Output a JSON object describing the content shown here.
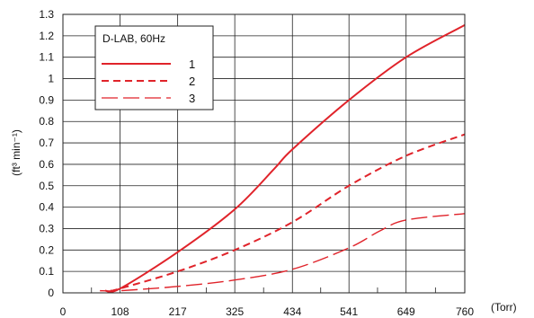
{
  "chart_data": {
    "type": "line",
    "title": "",
    "xlabel": "(Torr)",
    "ylabel": "(ft³ min⁻¹)",
    "x_ticks": [
      0,
      108,
      217,
      325,
      434,
      541,
      649,
      760
    ],
    "y_ticks": [
      0,
      0.1,
      0.2,
      0.3,
      0.4,
      0.5,
      0.6,
      0.7,
      0.8,
      0.9,
      1,
      1.1,
      1.2,
      1.3
    ],
    "x_tick_labels": [
      "0",
      "108",
      "217",
      "325",
      "434",
      "541",
      "649",
      "760"
    ],
    "y_tick_labels": [
      "0",
      "0.1",
      "0.2",
      "0.3",
      "0.4",
      "0.5",
      "0.6",
      "0.7",
      "0.8",
      "0.9",
      "1",
      "1.1",
      "1.2",
      "1.3"
    ],
    "xlim": [
      0,
      760
    ],
    "ylim": [
      0,
      1.3
    ],
    "grid": true,
    "legend": {
      "title": "D-LAB, 60Hz",
      "placement": "top-left"
    },
    "series": [
      {
        "name": "1",
        "style": "solid",
        "color": "#e0232a",
        "x": [
          80,
          108,
          217,
          325,
          400,
          434,
          541,
          649,
          760
        ],
        "y": [
          0.01,
          0.02,
          0.19,
          0.39,
          0.58,
          0.67,
          0.9,
          1.1,
          1.25
        ]
      },
      {
        "name": "2",
        "style": "dashed",
        "color": "#e0232a",
        "x": [
          90,
          108,
          217,
          325,
          434,
          541,
          649,
          760
        ],
        "y": [
          0.01,
          0.02,
          0.1,
          0.2,
          0.33,
          0.5,
          0.64,
          0.74
        ]
      },
      {
        "name": "3",
        "style": "long-dash",
        "color": "#e0232a",
        "x": [
          70,
          108,
          217,
          325,
          434,
          541,
          600,
          649,
          760
        ],
        "y": [
          0.01,
          0.01,
          0.03,
          0.06,
          0.11,
          0.21,
          0.29,
          0.34,
          0.37
        ]
      }
    ]
  }
}
